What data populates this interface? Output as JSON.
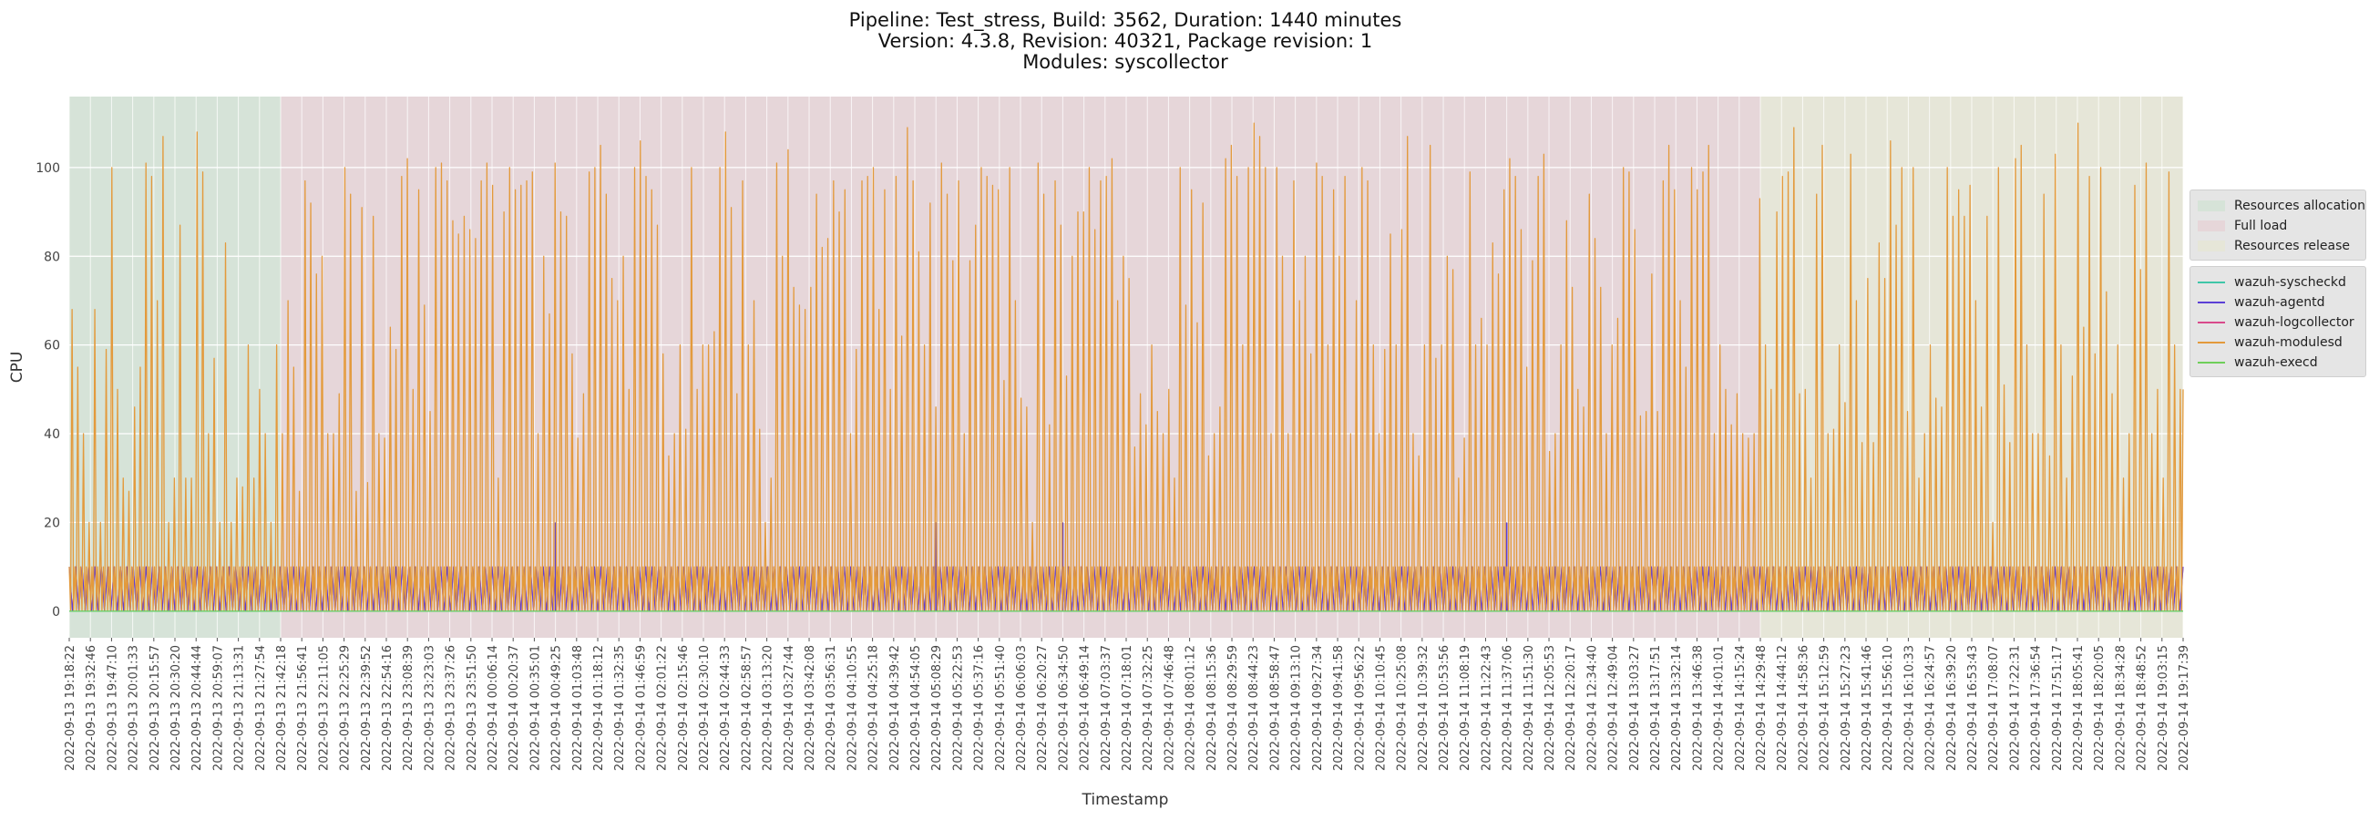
{
  "title_lines": [
    "Pipeline: Test_stress, Build: 3562, Duration: 1440 minutes",
    "Version: 4.3.8, Revision: 40321, Package revision: 1",
    "Modules: syscollector"
  ],
  "chart_data": {
    "type": "line",
    "title": "Pipeline: Test_stress, Build: 3562, Duration: 1440 minutes",
    "xlabel": "Timestamp",
    "ylabel": "CPU",
    "ylim": [
      -6,
      116
    ],
    "yticks": [
      0,
      20,
      40,
      60,
      80,
      100
    ],
    "grid": true,
    "x_tick_labels": [
      "2022-09-13 19:18:22",
      "2022-09-13 19:32:46",
      "2022-09-13 19:47:10",
      "2022-09-13 20:01:33",
      "2022-09-13 20:15:57",
      "2022-09-13 20:30:20",
      "2022-09-13 20:44:44",
      "2022-09-13 20:59:07",
      "2022-09-13 21:13:31",
      "2022-09-13 21:27:54",
      "2022-09-13 21:42:18",
      "2022-09-13 21:56:41",
      "2022-09-13 22:11:05",
      "2022-09-13 22:25:29",
      "2022-09-13 22:39:52",
      "2022-09-13 22:54:16",
      "2022-09-13 23:08:39",
      "2022-09-13 23:23:03",
      "2022-09-13 23:37:26",
      "2022-09-13 23:51:50",
      "2022-09-14 00:06:14",
      "2022-09-14 00:20:37",
      "2022-09-14 00:35:01",
      "2022-09-14 00:49:25",
      "2022-09-14 01:03:48",
      "2022-09-14 01:18:12",
      "2022-09-14 01:32:35",
      "2022-09-14 01:46:59",
      "2022-09-14 02:01:22",
      "2022-09-14 02:15:46",
      "2022-09-14 02:30:10",
      "2022-09-14 02:44:33",
      "2022-09-14 02:58:57",
      "2022-09-14 03:13:20",
      "2022-09-14 03:27:44",
      "2022-09-14 03:42:08",
      "2022-09-14 03:56:31",
      "2022-09-14 04:10:55",
      "2022-09-14 04:25:18",
      "2022-09-14 04:39:42",
      "2022-09-14 04:54:05",
      "2022-09-14 05:08:29",
      "2022-09-14 05:22:53",
      "2022-09-14 05:37:16",
      "2022-09-14 05:51:40",
      "2022-09-14 06:06:03",
      "2022-09-14 06:20:27",
      "2022-09-14 06:34:50",
      "2022-09-14 06:49:14",
      "2022-09-14 07:03:37",
      "2022-09-14 07:18:01",
      "2022-09-14 07:32:25",
      "2022-09-14 07:46:48",
      "2022-09-14 08:01:12",
      "2022-09-14 08:15:36",
      "2022-09-14 08:29:59",
      "2022-09-14 08:44:23",
      "2022-09-14 08:58:47",
      "2022-09-14 09:13:10",
      "2022-09-14 09:27:34",
      "2022-09-14 09:41:58",
      "2022-09-14 09:56:22",
      "2022-09-14 10:10:45",
      "2022-09-14 10:25:08",
      "2022-09-14 10:39:32",
      "2022-09-14 10:53:56",
      "2022-09-14 11:08:19",
      "2022-09-14 11:22:43",
      "2022-09-14 11:37:06",
      "2022-09-14 11:51:30",
      "2022-09-14 12:05:53",
      "2022-09-14 12:20:17",
      "2022-09-14 12:34:40",
      "2022-09-14 12:49:04",
      "2022-09-14 13:03:27",
      "2022-09-14 13:17:51",
      "2022-09-14 13:32:14",
      "2022-09-14 13:46:38",
      "2022-09-14 14:01:01",
      "2022-09-14 14:15:24",
      "2022-09-14 14:29:48",
      "2022-09-14 14:44:12",
      "2022-09-14 14:58:36",
      "2022-09-14 15:12:59",
      "2022-09-14 15:27:23",
      "2022-09-14 15:41:46",
      "2022-09-14 15:56:10",
      "2022-09-14 16:10:33",
      "2022-09-14 16:24:57",
      "2022-09-14 16:39:20",
      "2022-09-14 16:53:43",
      "2022-09-14 17:08:07",
      "2022-09-14 17:22:31",
      "2022-09-14 17:36:54",
      "2022-09-14 17:51:17",
      "2022-09-14 18:05:41",
      "2022-09-14 18:20:05",
      "2022-09-14 18:34:28",
      "2022-09-14 18:48:52",
      "2022-09-14 19:03:15",
      "2022-09-14 19:17:39"
    ],
    "phases": [
      {
        "name": "Resources allocation",
        "start": "2022-09-13 19:18:22",
        "end": "2022-09-13 21:42:18",
        "color": "#d6e3d8"
      },
      {
        "name": "Full load",
        "start": "2022-09-13 21:42:18",
        "end": "2022-09-14 14:29:48",
        "color": "#e6d6d9"
      },
      {
        "name": "Resources release",
        "start": "2022-09-14 14:29:48",
        "end": "2022-09-14 19:17:39",
        "color": "#e6e6d8"
      }
    ],
    "series": [
      {
        "name": "wazuh-syscheckd",
        "color": "#3fc6a8",
        "pattern": "constant",
        "base": 0,
        "values": [],
        "spikes": []
      },
      {
        "name": "wazuh-agentd",
        "color": "#5b3fd6",
        "pattern": "step",
        "base": 0,
        "values": [
          10
        ],
        "spikes": [
          {
            "x": "2022-09-14 00:49:25",
            "y": 20
          },
          {
            "x": "2022-09-14 05:08:29",
            "y": 20
          },
          {
            "x": "2022-09-14 06:34:50",
            "y": 20
          },
          {
            "x": "2022-09-14 11:37:06",
            "y": 20
          }
        ]
      },
      {
        "name": "wazuh-logcollector",
        "color": "#d94a8c",
        "pattern": "step",
        "base": 0,
        "values": [
          10
        ],
        "spikes": []
      },
      {
        "name": "wazuh-modulesd",
        "color": "#e39a3c",
        "pattern": "oscillating",
        "base": 0,
        "values": [
          68,
          55,
          40,
          20,
          68,
          20,
          59,
          100,
          50,
          30,
          27,
          46,
          55,
          101,
          98,
          70,
          107,
          20,
          30,
          87,
          30,
          30,
          108,
          99,
          40,
          57,
          20,
          83,
          20,
          30,
          28,
          60,
          30,
          50,
          40,
          20,
          60,
          40,
          70,
          55,
          27,
          97,
          92,
          76,
          80,
          40,
          40,
          49,
          100,
          94,
          27,
          91,
          29,
          89,
          40,
          39,
          64,
          59,
          98,
          102,
          50,
          95,
          69,
          45,
          100,
          101,
          97,
          88,
          85,
          89,
          86,
          84,
          97,
          101,
          96,
          30,
          90,
          100,
          95,
          96,
          97,
          99,
          40,
          80,
          67,
          101,
          90,
          89,
          58,
          39,
          49,
          99,
          100,
          105,
          94,
          75,
          70,
          80,
          50,
          100,
          106,
          98,
          95,
          87,
          58,
          35,
          40,
          60,
          41,
          100,
          50,
          60,
          60,
          63,
          100,
          108,
          91,
          49,
          97,
          60,
          70,
          41,
          20,
          30,
          101,
          80,
          104,
          73,
          69,
          68,
          73,
          94,
          82,
          84,
          97,
          90,
          95,
          40,
          59,
          97,
          98,
          100,
          68,
          95,
          50,
          98,
          62,
          109,
          97,
          81,
          60,
          92,
          46,
          101,
          94,
          79,
          97,
          40,
          79,
          87,
          100,
          98,
          96,
          95,
          52,
          100,
          70,
          48,
          46,
          20,
          101,
          94,
          42,
          97,
          87,
          53,
          80,
          90,
          90,
          100,
          86,
          97,
          98,
          102,
          70,
          80,
          75,
          37,
          49,
          42,
          60,
          45,
          40,
          50,
          30,
          100,
          69,
          95,
          65,
          92,
          35,
          40,
          46,
          102,
          105,
          98,
          60,
          100,
          110,
          107,
          100,
          40,
          100,
          80,
          40,
          97,
          70,
          80,
          58,
          101,
          98,
          60,
          95,
          80,
          98,
          40,
          70,
          100,
          97,
          60,
          40,
          59,
          85,
          60,
          86,
          107,
          40,
          35,
          60,
          105,
          57,
          60,
          80,
          77,
          30,
          39,
          99,
          60,
          66,
          60,
          83,
          76,
          95,
          102,
          98,
          86,
          55,
          79,
          98,
          103,
          36,
          40,
          60,
          88,
          73,
          50,
          46,
          94,
          84,
          73,
          40,
          60,
          66,
          100,
          99,
          86,
          44,
          45,
          76,
          45,
          97,
          105,
          95,
          70,
          55,
          100,
          95,
          99,
          105,
          40,
          60,
          50,
          42,
          49,
          40,
          39,
          40,
          93,
          60,
          50,
          90,
          98,
          99,
          109,
          49,
          50,
          30,
          94,
          105,
          40,
          41,
          60,
          47,
          103,
          70,
          38,
          75,
          38,
          83,
          75,
          106,
          87,
          100,
          45,
          100,
          30,
          40,
          60,
          48,
          46,
          100,
          89,
          95,
          89,
          96,
          70,
          46,
          89,
          20,
          100,
          51,
          38,
          102,
          105,
          60,
          40,
          40,
          94,
          35,
          103,
          60,
          30,
          53,
          110,
          64,
          98,
          58,
          100,
          72,
          49,
          60,
          30,
          40,
          96,
          77,
          101,
          40,
          50,
          30,
          99,
          60,
          50
        ],
        "spikes": []
      },
      {
        "name": "wazuh-execd",
        "color": "#6ecf5a",
        "pattern": "constant",
        "base": 0,
        "values": [],
        "spikes": []
      }
    ],
    "legend_phases_title": "",
    "legend_placement": "right"
  }
}
